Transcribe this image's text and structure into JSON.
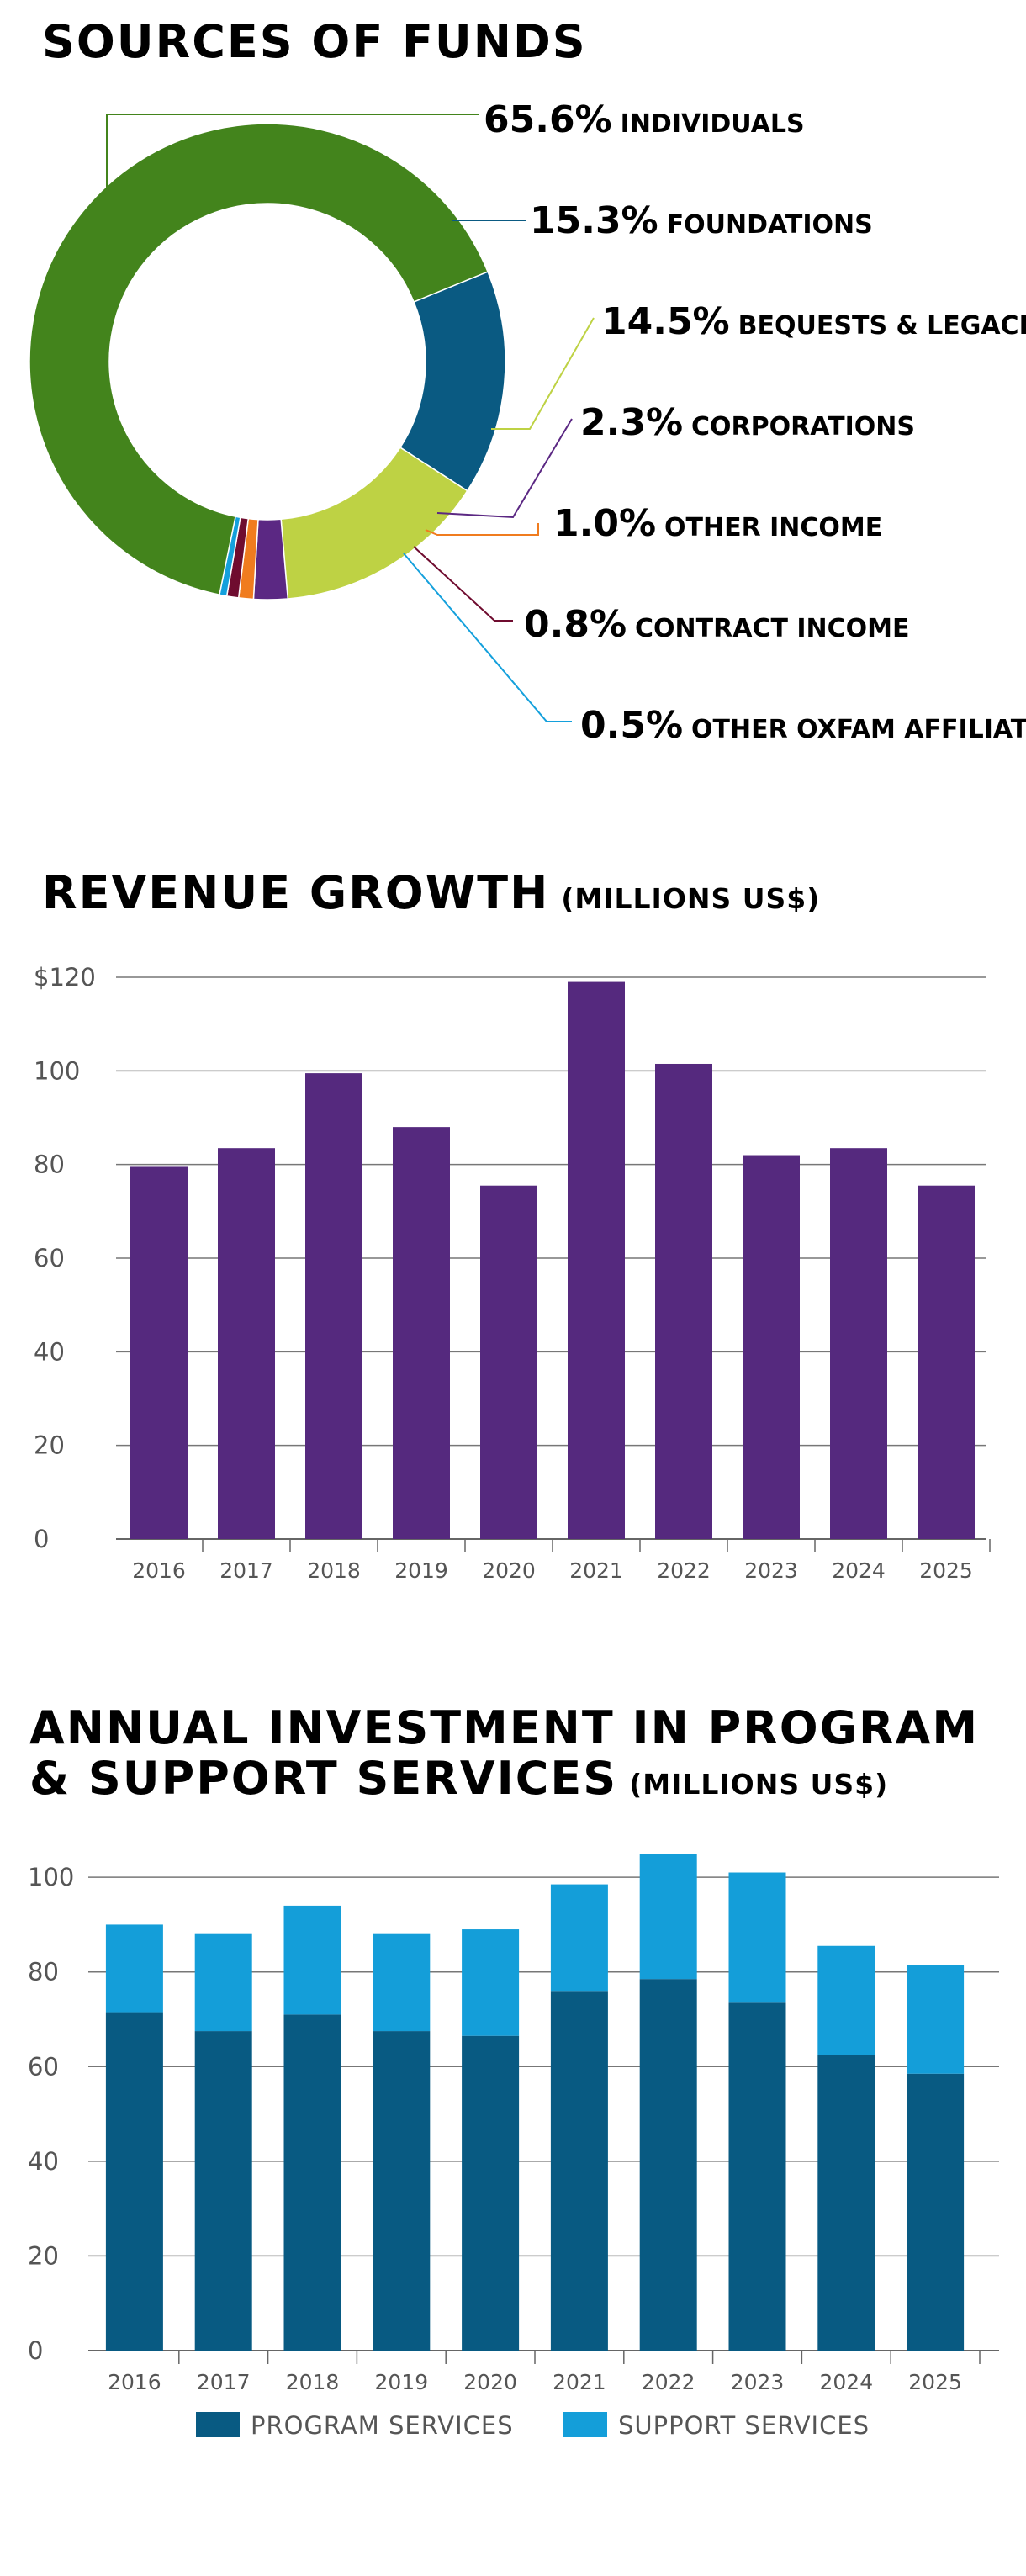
{
  "chart_data": [
    {
      "type": "pie",
      "title": "SOURCES OF FUNDS",
      "slices": [
        {
          "label": "INDIVIDUALS",
          "percent_label": "65.6%",
          "value": 65.6,
          "color": "#43841c"
        },
        {
          "label": "FOUNDATIONS",
          "percent_label": "15.3%",
          "value": 15.3,
          "color": "#0a5a82"
        },
        {
          "label": "BEQUESTS & LEGACIES",
          "percent_label": "14.5%",
          "value": 14.5,
          "color": "#bed244"
        },
        {
          "label": "CORPORATIONS",
          "percent_label": "2.3%",
          "value": 2.3,
          "color": "#5b2883"
        },
        {
          "label": "OTHER INCOME",
          "percent_label": "1.0%",
          "value": 1.0,
          "color": "#f07c1f"
        },
        {
          "label": "CONTRACT INCOME",
          "percent_label": "0.8%",
          "value": 0.8,
          "color": "#6f0c2f"
        },
        {
          "label": "OTHER OXFAM AFFILIATES",
          "percent_label": "0.5%",
          "value": 0.5,
          "color": "#14a0dc"
        }
      ]
    },
    {
      "type": "bar",
      "title": "REVENUE GROWTH",
      "subtitle": "(MILLIONS US$)",
      "categories": [
        "2016",
        "2017",
        "2018",
        "2019",
        "2020",
        "2021",
        "2022",
        "2023",
        "2024",
        "2025"
      ],
      "values": [
        79.5,
        83.5,
        99.5,
        88,
        75.5,
        119,
        101.5,
        82,
        83.5,
        75.5
      ],
      "color": "#55297e",
      "ylim": [
        0,
        120
      ],
      "yticks": [
        0,
        20,
        40,
        60,
        80,
        100,
        120
      ],
      "ytick_labels": [
        "0",
        "20",
        "40",
        "60",
        "80",
        "100",
        "$120"
      ],
      "grid": true
    },
    {
      "type": "bar",
      "stacked": true,
      "title_line1": "ANNUAL INVESTMENT IN PROGRAM",
      "title_line2": "& SUPPORT SERVICES",
      "subtitle": "(MILLIONS US$)",
      "categories": [
        "2016",
        "2017",
        "2018",
        "2019",
        "2020",
        "2021",
        "2022",
        "2023",
        "2024",
        "2025"
      ],
      "series": [
        {
          "name": "PROGRAM SERVICES",
          "color": "#085a82",
          "values": [
            71.5,
            67.5,
            71,
            67.5,
            66.5,
            76,
            78.5,
            73.5,
            62.5,
            58.5
          ]
        },
        {
          "name": "SUPPORT SERVICES",
          "color": "#149ed9",
          "values": [
            18.5,
            20.5,
            23,
            20.5,
            22.5,
            22.5,
            26.5,
            27.5,
            23,
            23
          ]
        }
      ],
      "ylim": [
        0,
        105
      ],
      "yticks": [
        0,
        20,
        40,
        60,
        80,
        100
      ],
      "ytick_labels": [
        "0",
        "20",
        "40",
        "60",
        "80",
        "100"
      ],
      "grid": true,
      "legend_position": "bottom"
    }
  ]
}
